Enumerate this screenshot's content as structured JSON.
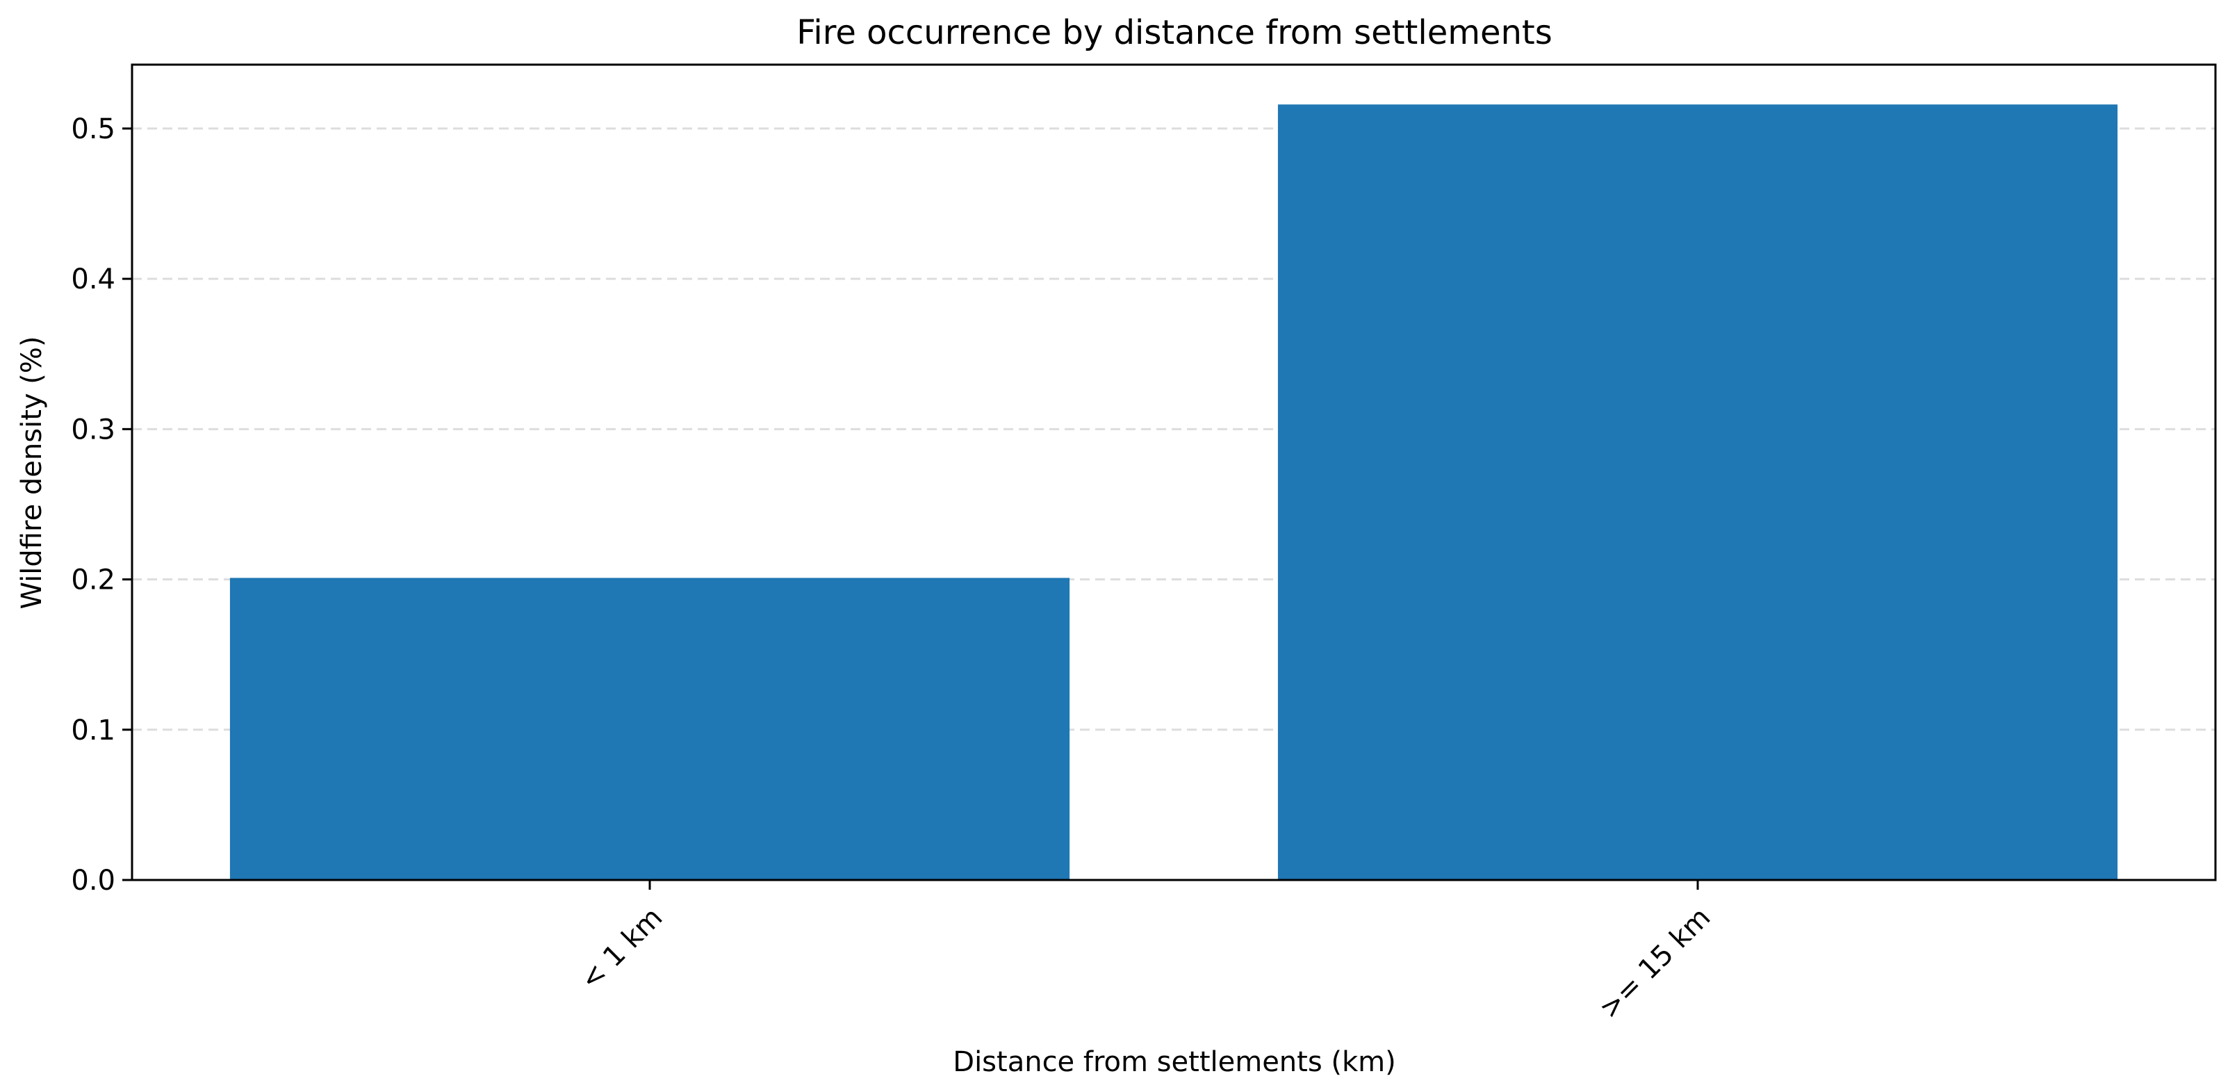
{
  "chart_data": {
    "type": "bar",
    "title": "Fire occurrence by distance from settlements",
    "xlabel": "Distance from settlements (km)",
    "ylabel": "Wildfire density (%)",
    "categories": [
      "< 1 km",
      ">= 15 km"
    ],
    "values": [
      0.201,
      0.516
    ],
    "ylim": [
      0,
      0.5425
    ],
    "yticks": [
      "0.0",
      "0.1",
      "0.2",
      "0.3",
      "0.4",
      "0.5"
    ],
    "grid": "y-dashed",
    "legend": "none",
    "colors": {
      "bar": "#1f77b4",
      "grid": "#dddddd",
      "axis": "#000000"
    }
  }
}
